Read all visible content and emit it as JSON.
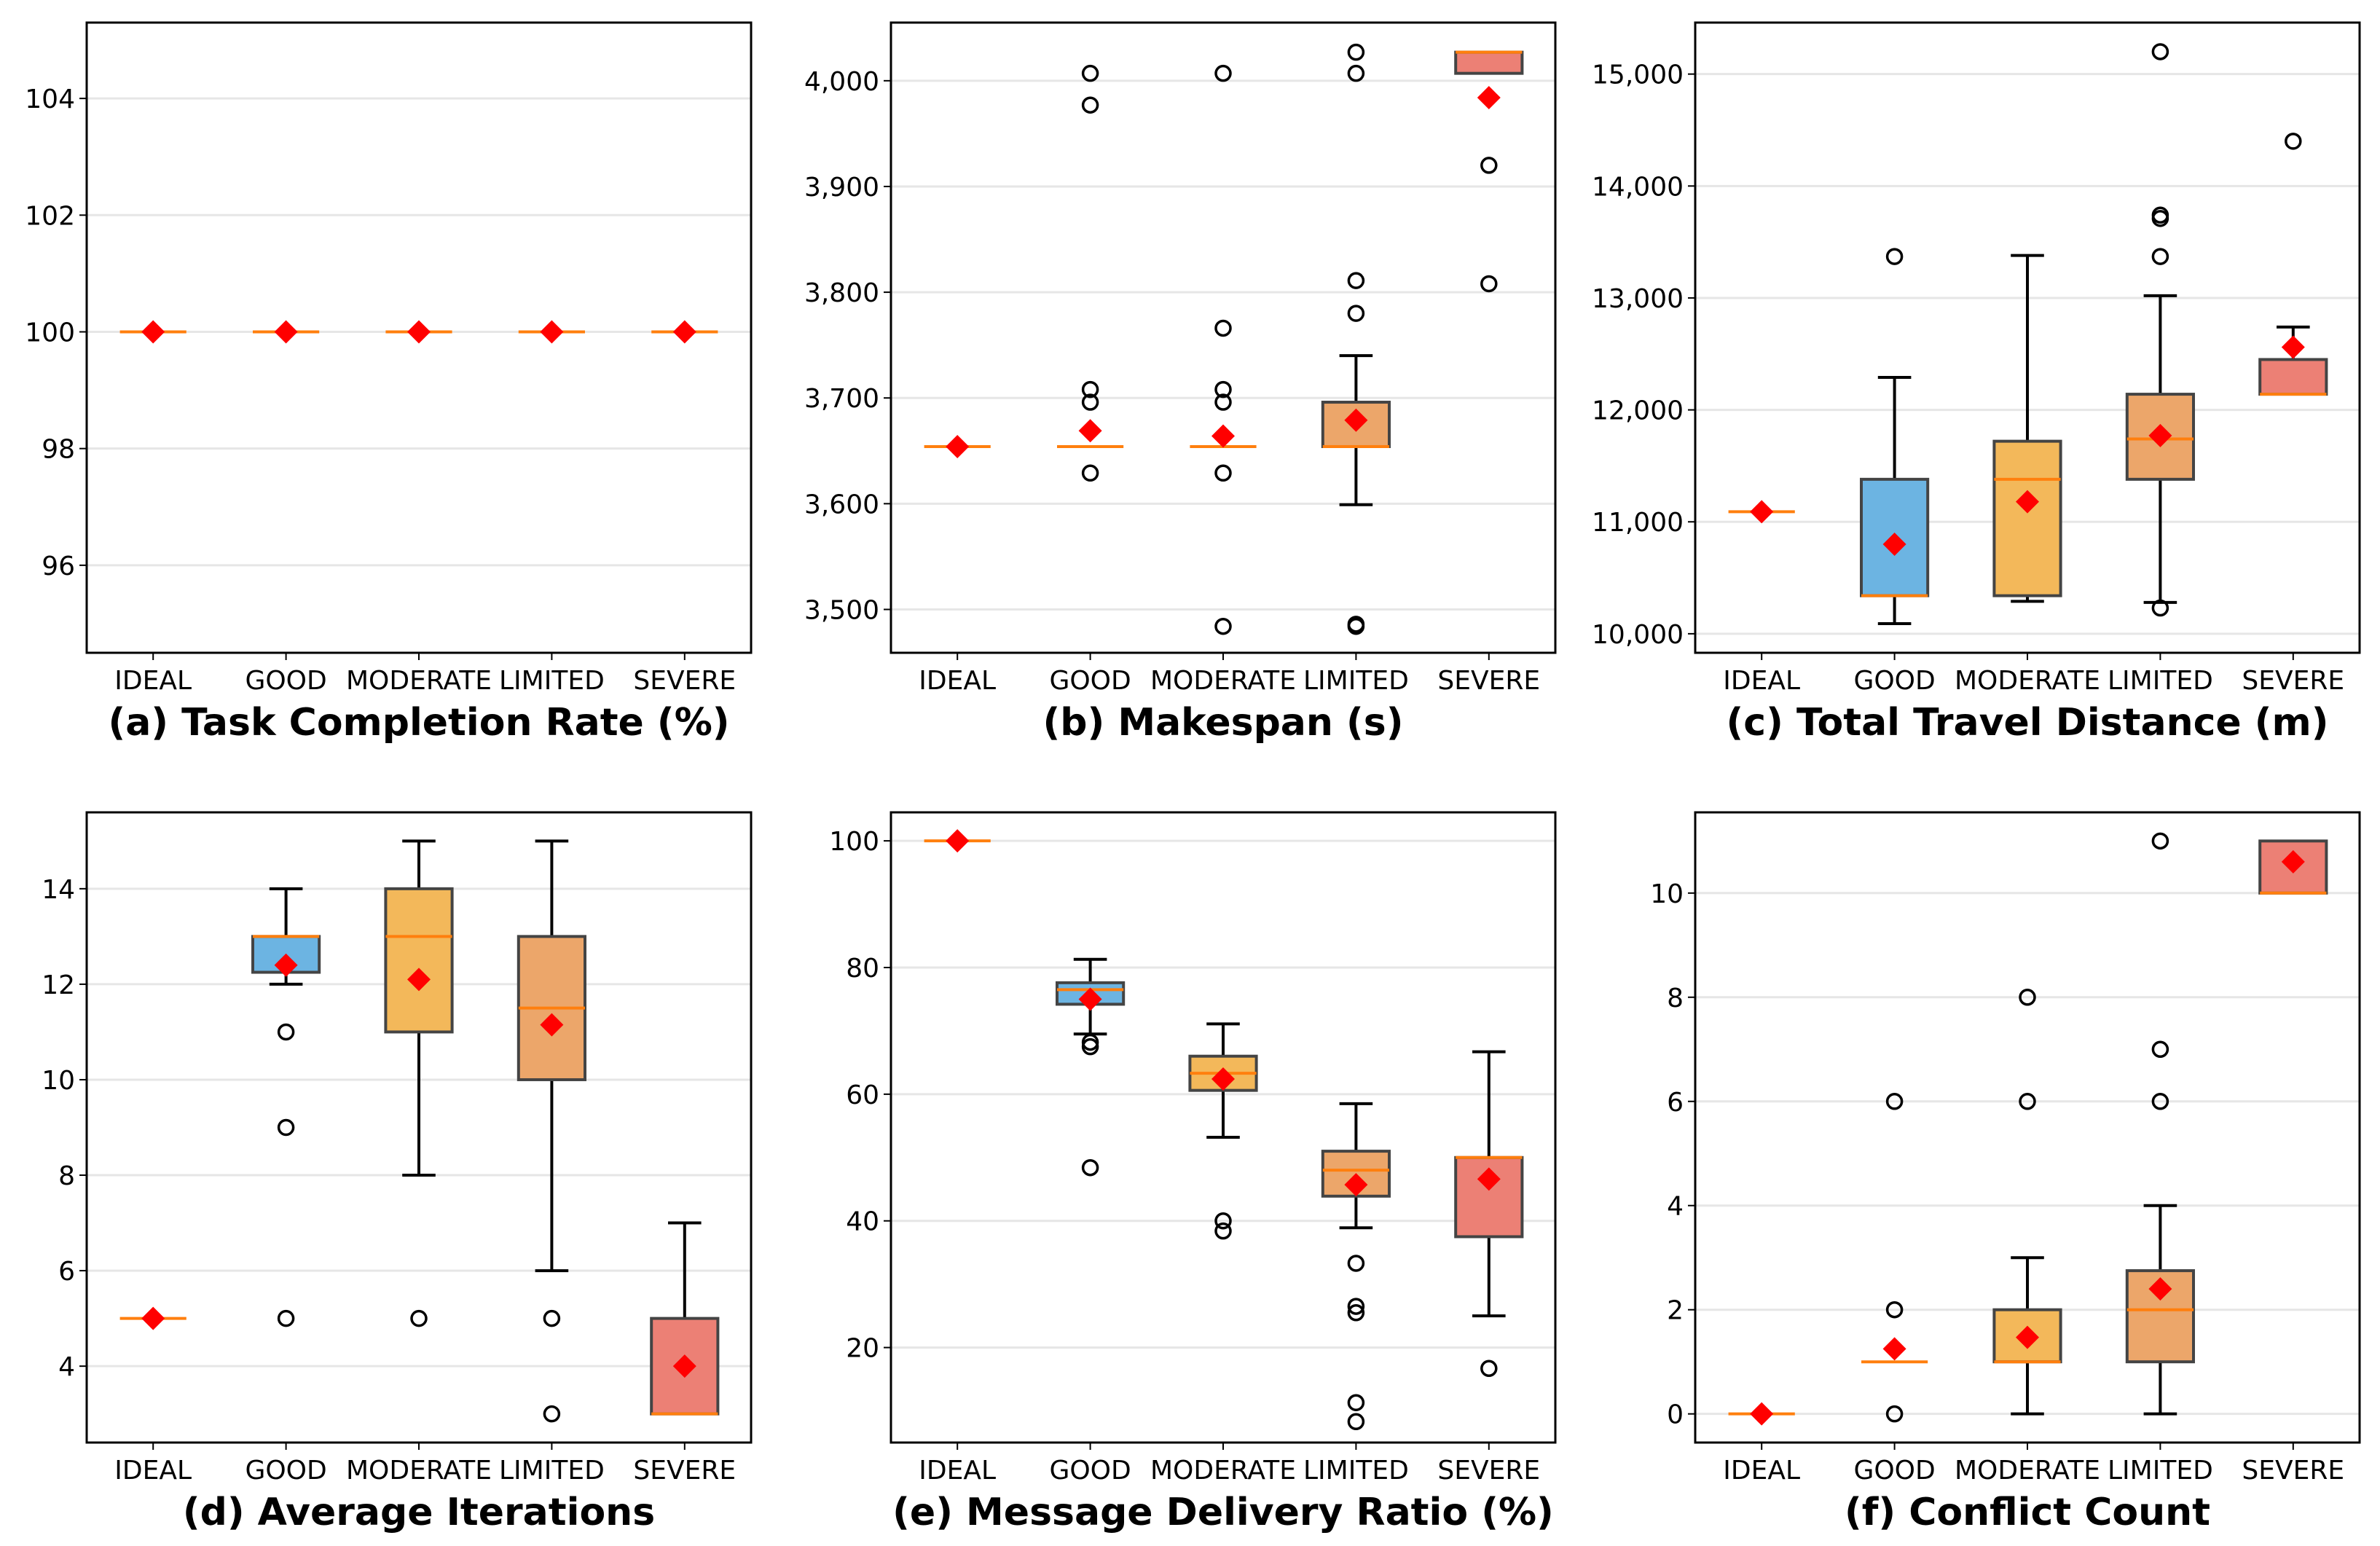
{
  "colors": {
    "IDEAL": "#f08070",
    "GOOD": "#6cb4e2",
    "MODERATE": "#f3b85a",
    "LIMITED": "#eca66a",
    "SEVERE": "#ec8075",
    "median": "#ff7f0e",
    "mean": "#ff0000",
    "grid": "#e6e6e6"
  },
  "chart_data": [
    {
      "type": "box",
      "title": "(a) Task Completion Rate (%)",
      "categories": [
        "IDEAL",
        "GOOD",
        "MODERATE",
        "LIMITED",
        "SEVERE"
      ],
      "ylim": [
        94.5,
        105.3
      ],
      "yticks": [
        96,
        98,
        100,
        102,
        104
      ],
      "ytick_labels": [
        "96",
        "98",
        "100",
        "102",
        "104"
      ],
      "series": [
        {
          "q1": 100,
          "median": 100,
          "q3": 100,
          "whislo": 100,
          "whishi": 100,
          "mean": 100,
          "fliers": []
        },
        {
          "q1": 100,
          "median": 100,
          "q3": 100,
          "whislo": 100,
          "whishi": 100,
          "mean": 100,
          "fliers": []
        },
        {
          "q1": 100,
          "median": 100,
          "q3": 100,
          "whislo": 100,
          "whishi": 100,
          "mean": 100,
          "fliers": []
        },
        {
          "q1": 100,
          "median": 100,
          "q3": 100,
          "whislo": 100,
          "whishi": 100,
          "mean": 100,
          "fliers": []
        },
        {
          "q1": 100,
          "median": 100,
          "q3": 100,
          "whislo": 100,
          "whishi": 100,
          "mean": 100,
          "fliers": []
        }
      ]
    },
    {
      "type": "box",
      "title": "(b) Makespan (s)",
      "categories": [
        "IDEAL",
        "GOOD",
        "MODERATE",
        "LIMITED",
        "SEVERE"
      ],
      "ylim": [
        3459,
        4055
      ],
      "yticks": [
        3500,
        3600,
        3700,
        3800,
        3900,
        4000
      ],
      "ytick_labels": [
        "3,500",
        "3,600",
        "3,700",
        "3,800",
        "3,900",
        "4,000"
      ],
      "series": [
        {
          "q1": 3654,
          "median": 3654,
          "q3": 3654,
          "whislo": 3654,
          "whishi": 3654,
          "mean": 3654,
          "fliers": []
        },
        {
          "q1": 3654,
          "median": 3654,
          "q3": 3654,
          "whislo": 3654,
          "whishi": 3654,
          "mean": 3669,
          "fliers": [
            4007,
            3977,
            3708,
            3696,
            3629
          ]
        },
        {
          "q1": 3654,
          "median": 3654,
          "q3": 3654,
          "whislo": 3654,
          "whishi": 3654,
          "mean": 3664,
          "fliers": [
            4007,
            3766,
            3708,
            3696,
            3629,
            3484
          ]
        },
        {
          "q1": 3654,
          "median": 3654,
          "q3": 3696,
          "whislo": 3599,
          "whishi": 3740,
          "mean": 3679,
          "fliers": [
            4027,
            4007,
            3811,
            3780,
            3486,
            3484
          ]
        },
        {
          "q1": 4007,
          "median": 4027,
          "q3": 4027,
          "whislo": 4007,
          "whishi": 4027,
          "mean": 3984,
          "fliers": [
            3920,
            3808
          ]
        }
      ]
    },
    {
      "type": "box",
      "title": "(c) Total Travel Distance (m)",
      "categories": [
        "IDEAL",
        "GOOD",
        "MODERATE",
        "LIMITED",
        "SEVERE"
      ],
      "ylim": [
        9830,
        15460
      ],
      "yticks": [
        10000,
        11000,
        12000,
        13000,
        14000,
        15000
      ],
      "ytick_labels": [
        "10,000",
        "11,000",
        "12,000",
        "13,000",
        "14,000",
        "15,000"
      ],
      "series": [
        {
          "q1": 11090,
          "median": 11090,
          "q3": 11090,
          "whislo": 11090,
          "whishi": 11090,
          "mean": 11090,
          "fliers": []
        },
        {
          "q1": 10340,
          "median": 10340,
          "q3": 11380,
          "whislo": 10090,
          "whishi": 12290,
          "mean": 10800,
          "fliers": [
            13370
          ]
        },
        {
          "q1": 10340,
          "median": 11380,
          "q3": 11720,
          "whislo": 10290,
          "whishi": 13380,
          "mean": 11180,
          "fliers": []
        },
        {
          "q1": 11380,
          "median": 11740,
          "q3": 12140,
          "whislo": 10280,
          "whishi": 13020,
          "mean": 11770,
          "fliers": [
            10230,
            13370,
            13710,
            13740,
            15200
          ]
        },
        {
          "q1": 12140,
          "median": 12140,
          "q3": 12450,
          "whislo": 12140,
          "whishi": 12740,
          "mean": 12560,
          "fliers": [
            14400
          ]
        }
      ]
    },
    {
      "type": "box",
      "title": "(d) Average Iterations",
      "categories": [
        "IDEAL",
        "GOOD",
        "MODERATE",
        "LIMITED",
        "SEVERE"
      ],
      "ylim": [
        2.4,
        15.6
      ],
      "yticks": [
        4,
        6,
        8,
        10,
        12,
        14
      ],
      "ytick_labels": [
        "4",
        "6",
        "8",
        "10",
        "12",
        "14"
      ],
      "series": [
        {
          "q1": 5,
          "median": 5,
          "q3": 5,
          "whislo": 5,
          "whishi": 5,
          "mean": 5,
          "fliers": []
        },
        {
          "q1": 12.25,
          "median": 13,
          "q3": 13,
          "whislo": 12,
          "whishi": 14,
          "mean": 12.4,
          "fliers": [
            11,
            9,
            5
          ]
        },
        {
          "q1": 11,
          "median": 13,
          "q3": 14,
          "whislo": 8,
          "whishi": 15,
          "mean": 12.1,
          "fliers": [
            5
          ]
        },
        {
          "q1": 10,
          "median": 11.5,
          "q3": 13,
          "whislo": 6,
          "whishi": 15,
          "mean": 11.15,
          "fliers": [
            5,
            3
          ]
        },
        {
          "q1": 3,
          "median": 3,
          "q3": 5,
          "whislo": 3,
          "whishi": 7,
          "mean": 4,
          "fliers": []
        }
      ]
    },
    {
      "type": "box",
      "title": "(e) Message Delivery Ratio (%)",
      "categories": [
        "IDEAL",
        "GOOD",
        "MODERATE",
        "LIMITED",
        "SEVERE"
      ],
      "ylim": [
        5,
        104.5
      ],
      "yticks": [
        20,
        40,
        60,
        80,
        100
      ],
      "ytick_labels": [
        "20",
        "40",
        "60",
        "80",
        "100"
      ],
      "series": [
        {
          "q1": 100,
          "median": 100,
          "q3": 100,
          "whislo": 100,
          "whishi": 100,
          "mean": 100,
          "fliers": []
        },
        {
          "q1": 74.2,
          "median": 76.5,
          "q3": 77.6,
          "whislo": 69.5,
          "whishi": 81.3,
          "mean": 75,
          "fliers": [
            68.2,
            67.5,
            48.4
          ]
        },
        {
          "q1": 60.6,
          "median": 63.3,
          "q3": 66,
          "whislo": 53.2,
          "whishi": 71.1,
          "mean": 62.4,
          "fliers": [
            40,
            38.4
          ]
        },
        {
          "q1": 43.9,
          "median": 48,
          "q3": 51,
          "whislo": 38.9,
          "whishi": 58.5,
          "mean": 45.7,
          "fliers": [
            33.3,
            26.5,
            25.5,
            11.3,
            8.3
          ]
        },
        {
          "q1": 37.5,
          "median": 50,
          "q3": 50,
          "whislo": 25,
          "whishi": 66.7,
          "mean": 46.6,
          "fliers": [
            16.7
          ]
        }
      ]
    },
    {
      "type": "box",
      "title": "(f) Conflict Count",
      "categories": [
        "IDEAL",
        "GOOD",
        "MODERATE",
        "LIMITED",
        "SEVERE"
      ],
      "ylim": [
        -0.55,
        11.55
      ],
      "yticks": [
        0,
        2,
        4,
        6,
        8,
        10
      ],
      "ytick_labels": [
        "0",
        "2",
        "4",
        "6",
        "8",
        "10"
      ],
      "series": [
        {
          "q1": 0,
          "median": 0,
          "q3": 0,
          "whislo": 0,
          "whishi": 0,
          "mean": 0,
          "fliers": []
        },
        {
          "q1": 1,
          "median": 1,
          "q3": 1,
          "whislo": 1,
          "whishi": 1,
          "mean": 1.25,
          "fliers": [
            6,
            2,
            0
          ]
        },
        {
          "q1": 1,
          "median": 1,
          "q3": 2,
          "whislo": 0,
          "whishi": 3,
          "mean": 1.47,
          "fliers": [
            8,
            6
          ]
        },
        {
          "q1": 1,
          "median": 2,
          "q3": 2.75,
          "whislo": 0,
          "whishi": 4,
          "mean": 2.4,
          "fliers": [
            11,
            7,
            6
          ]
        },
        {
          "q1": 10,
          "median": 10,
          "q3": 11,
          "whislo": 10,
          "whishi": 11,
          "mean": 10.6,
          "fliers": []
        }
      ]
    }
  ]
}
